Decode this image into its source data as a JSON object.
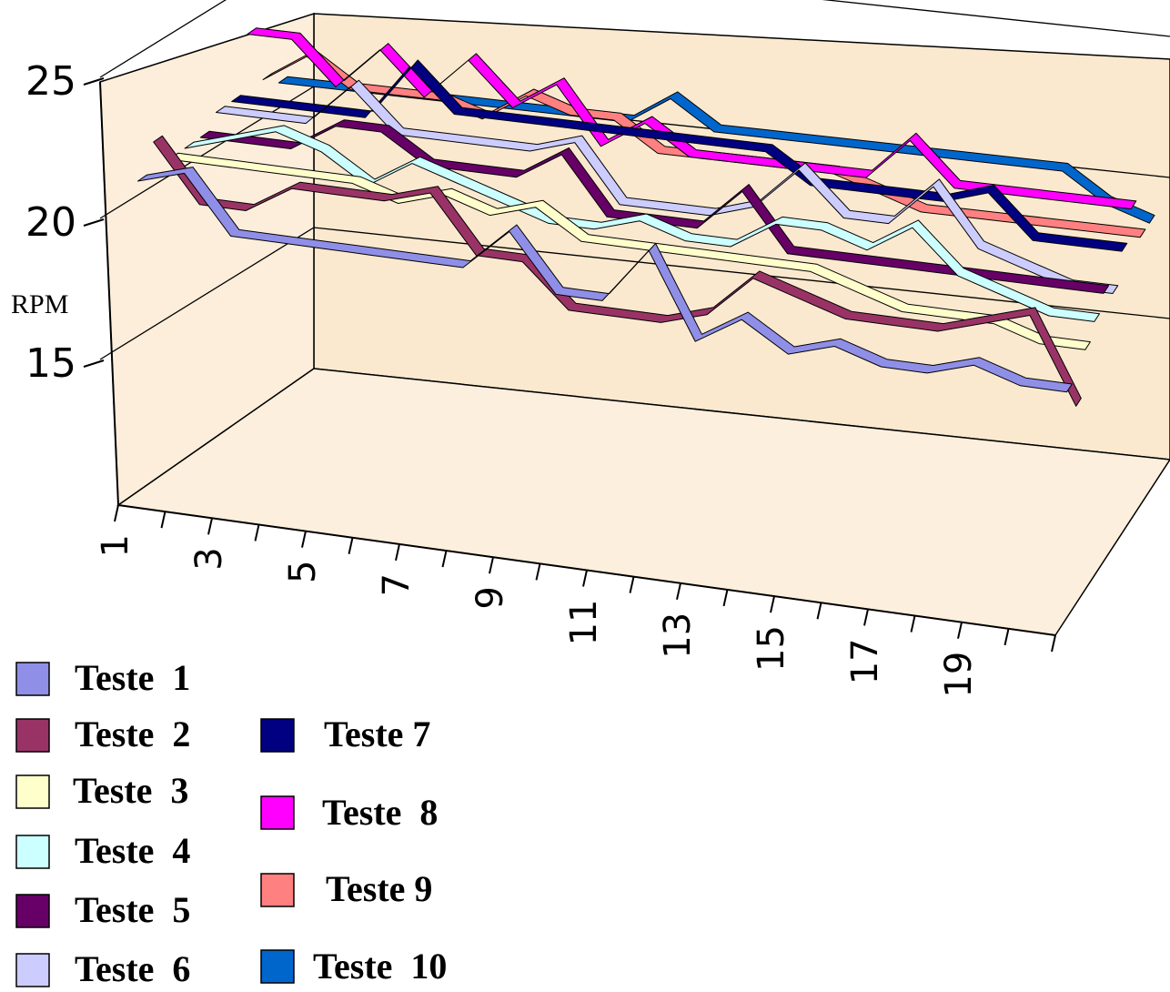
{
  "chart_data": {
    "type": "line",
    "title": "",
    "xlabel": "",
    "ylabel": "RPM",
    "ylim": [
      10,
      25
    ],
    "yticks": [
      "15",
      "20",
      "25"
    ],
    "x": [
      1,
      2,
      3,
      4,
      5,
      6,
      7,
      8,
      9,
      10,
      11,
      12,
      13,
      14,
      15,
      16,
      17,
      18,
      19,
      20,
      21
    ],
    "xtick_labels": [
      "1",
      "3",
      "5",
      "7",
      "9",
      "11",
      "13",
      "15",
      "17",
      "19"
    ],
    "legend_position": "bottom-left",
    "grid": true,
    "series": [
      {
        "name": "Teste  1",
        "color": "#8F8FE8",
        "values": [
          21.0,
          21.5,
          19.5,
          19.5,
          19.5,
          19.5,
          19.5,
          19.5,
          21.0,
          19.0,
          19.0,
          21.0,
          18.0,
          19.0,
          18.0,
          18.5,
          18.0,
          18.0,
          18.5,
          18.0,
          18.0
        ]
      },
      {
        "name": "Teste  2",
        "color": "#993366",
        "values": [
          22.0,
          20.0,
          20.0,
          21.0,
          21.0,
          21.0,
          21.5,
          19.5,
          19.5,
          18.0,
          18.0,
          18.0,
          18.5,
          20.0,
          19.5,
          19.0,
          19.0,
          19.0,
          19.5,
          20.0,
          17.0
        ]
      },
      {
        "name": "Teste  3",
        "color": "#FFFFCC",
        "values": [
          21.0,
          21.0,
          21.0,
          21.0,
          21.0,
          20.5,
          21.0,
          20.5,
          21.0,
          20.0,
          20.0,
          20.0,
          20.0,
          20.0,
          20.0,
          19.5,
          19.0,
          19.0,
          19.0,
          18.5,
          18.5
        ]
      },
      {
        "name": "Teste  4",
        "color": "#CCFFFF",
        "values": [
          21.0,
          21.5,
          22.0,
          21.5,
          20.5,
          21.5,
          21.0,
          20.5,
          20.0,
          20.0,
          20.5,
          20.0,
          20.0,
          21.0,
          21.0,
          20.5,
          21.5,
          20.0,
          19.5,
          19.0,
          19.0
        ]
      },
      {
        "name": "Teste  5",
        "color": "#660066",
        "values": [
          21.0,
          21.0,
          21.0,
          22.0,
          22.0,
          21.0,
          21.0,
          21.0,
          22.0,
          20.0,
          20.0,
          20.0,
          21.5,
          19.5,
          19.5,
          19.5,
          19.5,
          19.5,
          19.5,
          19.5,
          19.5
        ]
      },
      {
        "name": "Teste  6",
        "color": "#CCCCFF",
        "values": [
          21.5,
          21.5,
          21.5,
          23.0,
          21.5,
          21.5,
          21.5,
          21.5,
          22.0,
          20.0,
          20.0,
          20.0,
          20.5,
          22.0,
          20.5,
          20.5,
          22.0,
          20.0,
          19.5,
          19.0,
          19.0
        ]
      },
      {
        "name": "Teste 7",
        "color": "#000080",
        "values": [
          21.5,
          21.5,
          21.5,
          21.5,
          23.5,
          22.0,
          22.0,
          22.0,
          22.0,
          22.0,
          22.0,
          22.0,
          22.0,
          21.0,
          21.0,
          21.0,
          21.0,
          21.5,
          20.0,
          20.0,
          20.0
        ]
      },
      {
        "name": "Teste  8",
        "color": "#FF00FF",
        "values": [
          23.5,
          23.5,
          22.0,
          23.5,
          22.0,
          23.5,
          22.0,
          23.0,
          21.0,
          22.0,
          21.0,
          21.0,
          21.0,
          21.0,
          21.0,
          22.5,
          21.0,
          21.0,
          21.0,
          21.0,
          21.0
        ]
      },
      {
        "name": "Teste 9",
        "color": "#FF8080",
        "values": [
          21.5,
          22.5,
          21.5,
          21.5,
          21.5,
          21.0,
          22.0,
          21.5,
          21.5,
          20.5,
          20.5,
          20.5,
          20.5,
          20.5,
          20.0,
          19.5,
          19.5,
          19.5,
          19.5,
          19.5,
          19.5
        ]
      },
      {
        "name": "Teste  10",
        "color": "#0066CC",
        "values": [
          21.0,
          21.0,
          21.0,
          21.0,
          21.0,
          21.0,
          21.0,
          21.0,
          21.0,
          22.0,
          21.0,
          21.0,
          21.0,
          21.0,
          21.0,
          21.0,
          21.0,
          21.0,
          21.0,
          20.0,
          19.5
        ]
      }
    ]
  }
}
